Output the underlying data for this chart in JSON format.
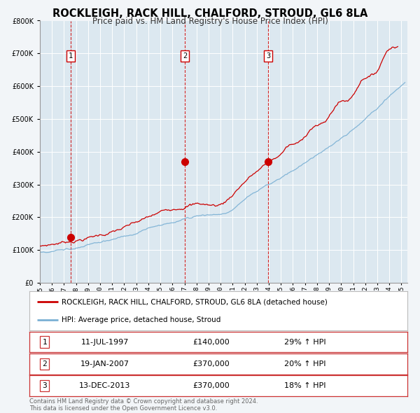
{
  "title": "ROCKLEIGH, RACK HILL, CHALFORD, STROUD, GL6 8LA",
  "subtitle": "Price paid vs. HM Land Registry's House Price Index (HPI)",
  "title_fontsize": 10.5,
  "subtitle_fontsize": 8.5,
  "background_color": "#f2f5f8",
  "plot_bg_color": "#dce8f0",
  "ylim": [
    0,
    800000
  ],
  "yticks": [
    0,
    100000,
    200000,
    300000,
    400000,
    500000,
    600000,
    700000,
    800000
  ],
  "xlim_start": 1995.0,
  "xlim_end": 2025.5,
  "xtick_years": [
    1995,
    1996,
    1997,
    1998,
    1999,
    2000,
    2001,
    2002,
    2003,
    2004,
    2005,
    2006,
    2007,
    2008,
    2009,
    2010,
    2011,
    2012,
    2013,
    2014,
    2015,
    2016,
    2017,
    2018,
    2019,
    2020,
    2021,
    2022,
    2023,
    2024,
    2025
  ],
  "line1_color": "#cc0000",
  "line2_color": "#7ab0d4",
  "line1_label": "ROCKLEIGH, RACK HILL, CHALFORD, STROUD, GL6 8LA (detached house)",
  "line2_label": "HPI: Average price, detached house, Stroud",
  "marker_color": "#cc0000",
  "sale_marker_size": 7,
  "vline_color": "#cc0000",
  "sales": [
    {
      "label": "1",
      "date_num": 1997.53,
      "price": 140000,
      "pct": "29%",
      "date_str": "11-JUL-1997"
    },
    {
      "label": "2",
      "date_num": 2007.05,
      "price": 370000,
      "pct": "20%",
      "date_str": "19-JAN-2007"
    },
    {
      "label": "3",
      "date_num": 2013.96,
      "price": 370000,
      "pct": "18%",
      "date_str": "13-DEC-2013"
    }
  ],
  "footnote": "Contains HM Land Registry data © Crown copyright and database right 2024.\nThis data is licensed under the Open Government Licence v3.0.",
  "footnote_fontsize": 6.0,
  "legend_fontsize": 7.5,
  "table_fontsize": 8.0
}
